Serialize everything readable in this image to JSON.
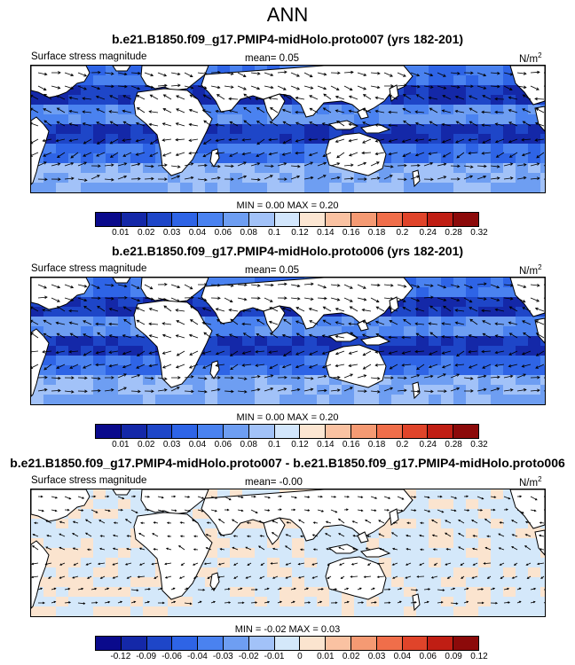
{
  "title": "ANN",
  "colors": {
    "abs": [
      "#0a0a8c",
      "#1428a8",
      "#1e46c8",
      "#2e64e6",
      "#4a82f0",
      "#6e9ef2",
      "#a2c2f8",
      "#d2e6fc",
      "#fce6d2",
      "#fac2a2",
      "#f59a73",
      "#f06e4a",
      "#e0442a",
      "#c01e14",
      "#8c0a0a"
    ],
    "diff": [
      "#0a0a8c",
      "#1428a8",
      "#1e46c8",
      "#2e64e6",
      "#4a82f0",
      "#6e9ef2",
      "#a2c2f8",
      "#d4e8fa",
      "#fbe4cf",
      "#fac2a2",
      "#f59a73",
      "#f06e4a",
      "#e0442a",
      "#c01e14",
      "#8c0a0a"
    ]
  },
  "panels": [
    {
      "title": "b.e21.B1850.f09_g17.PMIP4-midHolo.proto007 (yrs 182-201)",
      "variable": "Surface stress magnitude",
      "mean_label": "mean=   0.05",
      "unit": "N/m",
      "unit_sup": "2",
      "minmax": "MIN =   0.00 MAX =   0.20",
      "colorbar_ticks": [
        "0.01",
        "0.02",
        "0.03",
        "0.04",
        "0.06",
        "0.08",
        "0.1",
        "0.12",
        "0.14",
        "0.16",
        "0.18",
        "0.2",
        "0.24",
        "0.28",
        "0.32"
      ]
    },
    {
      "title": "b.e21.B1850.f09_g17.PMIP4-midHolo.proto006 (yrs 182-201)",
      "variable": "Surface stress magnitude",
      "mean_label": "mean=   0.05",
      "unit": "N/m",
      "unit_sup": "2",
      "minmax": "MIN =   0.00 MAX =   0.20",
      "colorbar_ticks": [
        "0.01",
        "0.02",
        "0.03",
        "0.04",
        "0.06",
        "0.08",
        "0.1",
        "0.12",
        "0.14",
        "0.16",
        "0.18",
        "0.2",
        "0.24",
        "0.28",
        "0.32"
      ]
    },
    {
      "title": "b.e21.B1850.f09_g17.PMIP4-midHolo.proto007 - b.e21.B1850.f09_g17.PMIP4-midHolo.proto006",
      "variable": "Surface stress magnitude",
      "mean_label": "mean=   -0.00",
      "unit": "N/m",
      "unit_sup": "2",
      "minmax": "MIN =  -0.02 MAX =   0.03",
      "colorbar_ticks": [
        "-0.12",
        "-0.09",
        "-0.06",
        "-0.04",
        "-0.03",
        "-0.02",
        "-0.01",
        "0",
        "0.01",
        "0.02",
        "0.03",
        "0.04",
        "0.06",
        "0.09",
        "0.12"
      ]
    }
  ]
}
